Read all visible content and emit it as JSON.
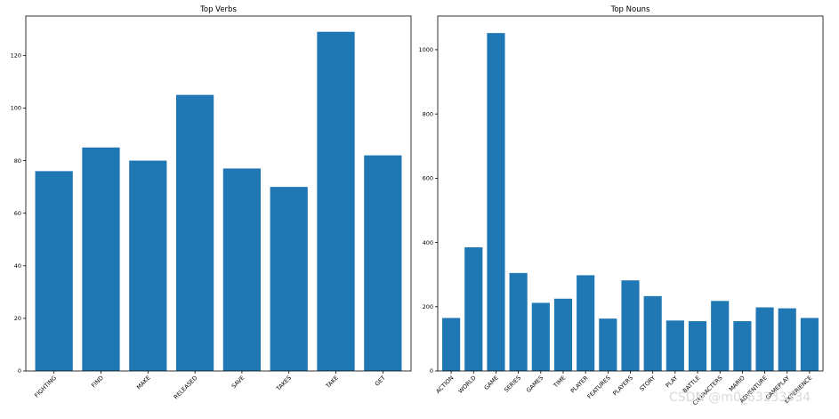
{
  "colors": {
    "bar": "#1f77b4"
  },
  "watermark": "CSDN @m0_63233334",
  "chart_data": [
    {
      "type": "bar",
      "title": "Top Verbs",
      "xlabel": "",
      "ylabel": "",
      "categories": [
        "FIGHTING",
        "FIND",
        "MAKE",
        "RELEASED",
        "SAVE",
        "TAKES",
        "TAKE",
        "GET"
      ],
      "values": [
        76,
        85,
        80,
        105,
        77,
        70,
        129,
        82
      ],
      "ylim": [
        0,
        135
      ],
      "yticks": [
        0,
        20,
        40,
        60,
        80,
        100,
        120
      ],
      "grid": false
    },
    {
      "type": "bar",
      "title": "Top Nouns",
      "xlabel": "",
      "ylabel": "",
      "categories": [
        "ACTION",
        "WORLD",
        "GAME",
        "SERIES",
        "GAMES",
        "TIME",
        "PLAYER",
        "FEATURES",
        "PLAYERS",
        "STORY",
        "PLAY",
        "BATTLE",
        "CHARACTERS",
        "MARIO",
        "ADVENTURE",
        "GAMEPLAY",
        "EXPERIENCE"
      ],
      "values": [
        165,
        385,
        1052,
        305,
        212,
        225,
        298,
        163,
        282,
        233,
        157,
        155,
        218,
        155,
        198,
        195,
        165
      ],
      "ylim": [
        0,
        1105
      ],
      "yticks": [
        0,
        200,
        400,
        600,
        800,
        1000
      ],
      "grid": false
    }
  ]
}
